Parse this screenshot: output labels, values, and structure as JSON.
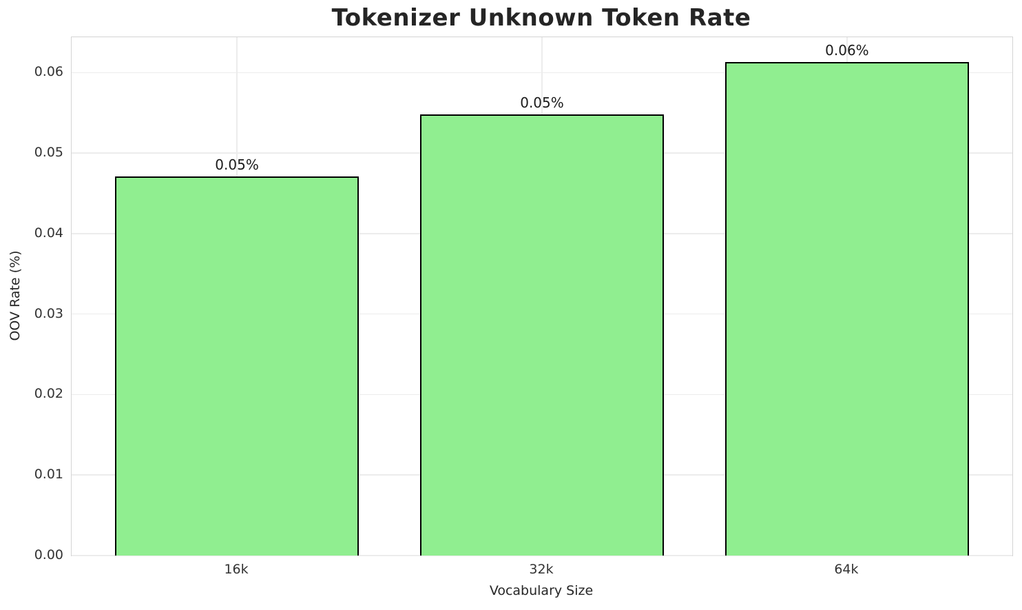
{
  "chart_data": {
    "type": "bar",
    "title": "Tokenizer Unknown Token Rate",
    "xlabel": "Vocabulary Size",
    "ylabel": "OOV Rate (%)",
    "categories": [
      "16k",
      "32k",
      "64k"
    ],
    "values": [
      0.0471,
      0.0548,
      0.0613
    ],
    "bar_labels": [
      "0.05%",
      "0.05%",
      "0.06%"
    ],
    "ytick_labels": [
      "0.00",
      "0.01",
      "0.02",
      "0.03",
      "0.04",
      "0.05",
      "0.06"
    ],
    "yticks": [
      0.0,
      0.01,
      0.02,
      0.03,
      0.04,
      0.05,
      0.06
    ],
    "ylim": [
      0,
      0.0644
    ],
    "xlim": [
      -0.542,
      2.542
    ],
    "bar_width": 0.8,
    "grid": true,
    "legend": "none",
    "colors": {
      "bar_fill": "#90EE90",
      "bar_edge": "#000000",
      "grid": "#ececec",
      "spine": "#d4d4d4",
      "title_text": "#252525",
      "tick_text": "#333333"
    }
  }
}
